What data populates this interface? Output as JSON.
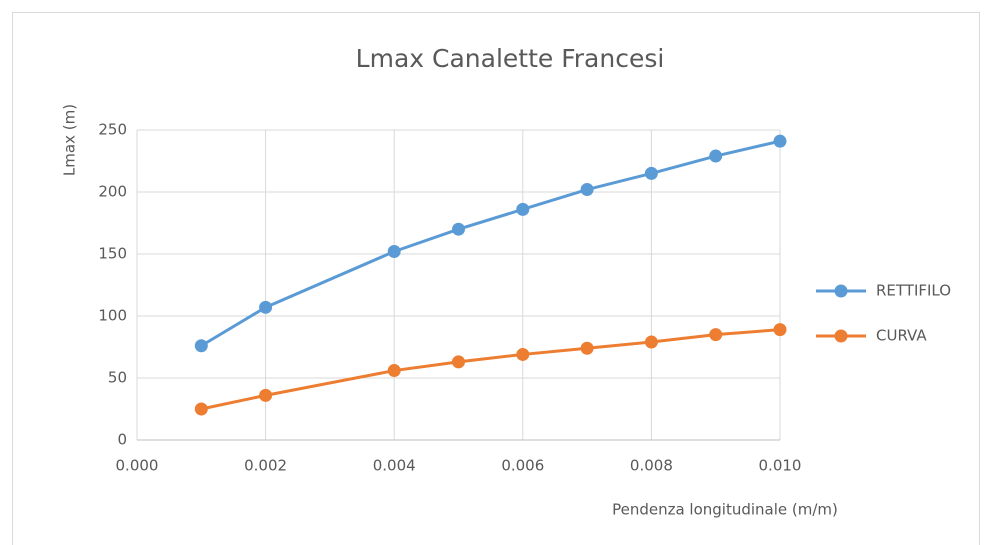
{
  "chart_data": {
    "type": "line",
    "title": "Lmax Canalette Francesi",
    "x_label": "Pendenza longitudinale (m/m)",
    "y_label": "Lmax (m)",
    "x": [
      0.001,
      0.002,
      0.004,
      0.005,
      0.006,
      0.007,
      0.008,
      0.009,
      0.01
    ],
    "series": [
      {
        "name": "RETTIFILO",
        "color": "#5b9bd5",
        "values": [
          76,
          107,
          152,
          170,
          186,
          202,
          215,
          229,
          241
        ]
      },
      {
        "name": "CURVA",
        "color": "#ed7d31",
        "values": [
          25,
          36,
          56,
          63,
          69,
          74,
          79,
          85,
          89
        ]
      }
    ],
    "xlim": [
      0,
      0.01
    ],
    "xticks": [
      {
        "value": 0,
        "label": "0.000"
      },
      {
        "value": 0.002,
        "label": "0.002"
      },
      {
        "value": 0.004,
        "label": "0.004"
      },
      {
        "value": 0.006,
        "label": "0.006"
      },
      {
        "value": 0.008,
        "label": "0.008"
      },
      {
        "value": 0.01,
        "label": "0.010"
      }
    ],
    "ylim": [
      0,
      250
    ],
    "yticks": [
      0,
      50,
      100,
      150,
      200,
      250
    ],
    "grid": true,
    "legend": "right"
  }
}
